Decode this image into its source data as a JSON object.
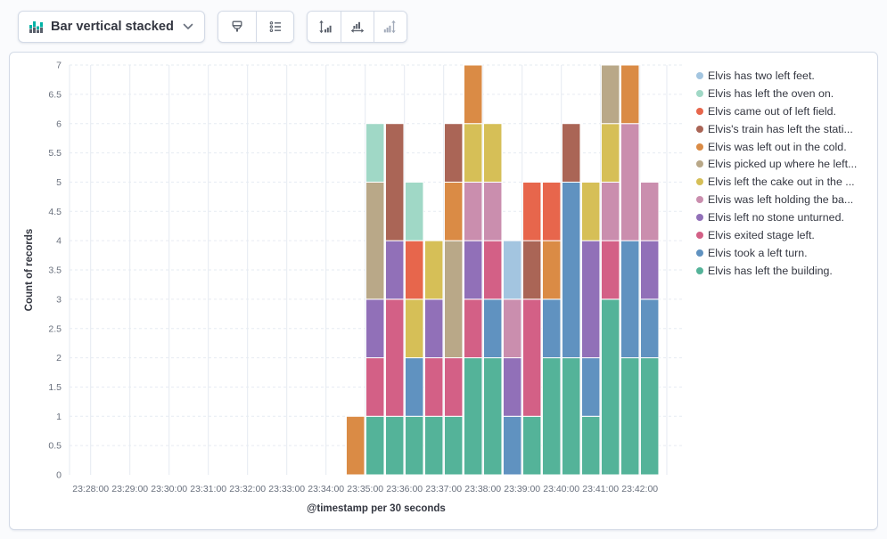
{
  "toolbar": {
    "chart_switcher": {
      "label": "Bar vertical stacked"
    },
    "icons": {
      "chart_type": "bar-vertical-stacked-icon",
      "group1": [
        "brush-icon",
        "legend-list-icon"
      ],
      "group2": [
        "left-axis-icon",
        "bottom-axis-icon",
        "right-axis-icon"
      ]
    },
    "accent_green": "#00b3a6",
    "icon_gray": "#5a606b",
    "disabled_gray": "#a2abba"
  },
  "legend": {
    "position": "right",
    "items": [
      {
        "label": "Elvis has two left feet.",
        "color": "#A3C5E0"
      },
      {
        "label": "Elvis has left the oven on.",
        "color": "#A0D8C6"
      },
      {
        "label": "Elvis came out of left field.",
        "color": "#E7664C"
      },
      {
        "label": "Elvis's train has left the stati...",
        "color": "#AA6556"
      },
      {
        "label": "Elvis was left out in the cold.",
        "color": "#DA8B45"
      },
      {
        "label": "Elvis picked up where he left...",
        "color": "#B9A888"
      },
      {
        "label": "Elvis left the cake out in the ...",
        "color": "#D6BF57"
      },
      {
        "label": "Elvis was left holding the ba...",
        "color": "#CA8EAE"
      },
      {
        "label": "Elvis left no stone unturned.",
        "color": "#9170B8"
      },
      {
        "label": "Elvis exited stage left.",
        "color": "#D36086"
      },
      {
        "label": "Elvis took a left turn.",
        "color": "#6092C0"
      },
      {
        "label": "Elvis has left the building.",
        "color": "#54B399"
      }
    ]
  },
  "chart_data": {
    "type": "bar",
    "stacked": true,
    "orientation": "vertical",
    "title": "",
    "xlabel": "@timestamp per 30 seconds",
    "ylabel": "Count of records",
    "ylim": [
      0,
      7
    ],
    "y_tick_step": 0.5,
    "grid": true,
    "legend_position": "right",
    "x_axis_ticks": [
      "23:28:00",
      "23:29:00",
      "23:30:00",
      "23:31:00",
      "23:32:00",
      "23:33:00",
      "23:34:00",
      "23:35:00",
      "23:36:00",
      "23:37:00",
      "23:38:00",
      "23:39:00",
      "23:40:00",
      "23:41:00",
      "23:42:00"
    ],
    "bucket_interval_seconds": 30,
    "buckets": [
      "23:34:30",
      "23:35:00",
      "23:35:30",
      "23:36:00",
      "23:36:30",
      "23:37:00",
      "23:37:30",
      "23:38:00",
      "23:38:30",
      "23:39:00",
      "23:39:30",
      "23:40:00",
      "23:40:30",
      "23:41:00",
      "23:41:30",
      "23:42:00"
    ],
    "series": [
      {
        "name": "Elvis has left the building.",
        "color": "#54B399",
        "values": [
          0,
          1,
          1,
          1,
          1,
          1,
          2,
          2,
          0,
          1,
          2,
          2,
          1,
          3,
          2,
          2
        ]
      },
      {
        "name": "Elvis took a left turn.",
        "color": "#6092C0",
        "values": [
          0,
          0,
          0,
          1,
          0,
          0,
          0,
          1,
          1,
          0,
          1,
          3,
          1,
          0,
          2,
          1
        ]
      },
      {
        "name": "Elvis exited stage left.",
        "color": "#D36086",
        "values": [
          0,
          1,
          2,
          0,
          1,
          1,
          1,
          1,
          0,
          2,
          0,
          0,
          0,
          1,
          0,
          0
        ]
      },
      {
        "name": "Elvis left no stone unturned.",
        "color": "#9170B8",
        "values": [
          0,
          1,
          1,
          0,
          1,
          0,
          1,
          0,
          1,
          0,
          0,
          0,
          2,
          0,
          0,
          1
        ]
      },
      {
        "name": "Elvis was left holding the ba...",
        "color": "#CA8EAE",
        "values": [
          0,
          0,
          0,
          0,
          0,
          0,
          1,
          1,
          1,
          0,
          0,
          0,
          0,
          1,
          2,
          1
        ]
      },
      {
        "name": "Elvis left the cake out in the ...",
        "color": "#D6BF57",
        "values": [
          0,
          0,
          0,
          1,
          1,
          0,
          1,
          1,
          0,
          0,
          0,
          0,
          1,
          1,
          0,
          0
        ]
      },
      {
        "name": "Elvis picked up where he left...",
        "color": "#B9A888",
        "values": [
          0,
          2,
          0,
          0,
          0,
          2,
          0,
          0,
          0,
          0,
          0,
          0,
          0,
          1,
          0,
          0
        ]
      },
      {
        "name": "Elvis was left out in the cold.",
        "color": "#DA8B45",
        "values": [
          1,
          0,
          0,
          0,
          0,
          1,
          1,
          0,
          0,
          0,
          1,
          0,
          0,
          0,
          1,
          0
        ]
      },
      {
        "name": "Elvis's train has left the stati...",
        "color": "#AA6556",
        "values": [
          0,
          0,
          2,
          0,
          0,
          1,
          0,
          0,
          0,
          1,
          0,
          1,
          0,
          0,
          0,
          0
        ]
      },
      {
        "name": "Elvis came out of left field.",
        "color": "#E7664C",
        "values": [
          0,
          0,
          0,
          1,
          0,
          0,
          0,
          0,
          0,
          1,
          1,
          0,
          0,
          0,
          0,
          0
        ]
      },
      {
        "name": "Elvis has left the oven on.",
        "color": "#A0D8C6",
        "values": [
          0,
          1,
          0,
          1,
          0,
          0,
          0,
          0,
          0,
          0,
          0,
          0,
          0,
          0,
          0,
          0
        ]
      },
      {
        "name": "Elvis has two left feet.",
        "color": "#A3C5E0",
        "values": [
          0,
          0,
          0,
          0,
          0,
          0,
          0,
          0,
          1,
          0,
          0,
          0,
          0,
          0,
          0,
          0
        ]
      }
    ]
  }
}
